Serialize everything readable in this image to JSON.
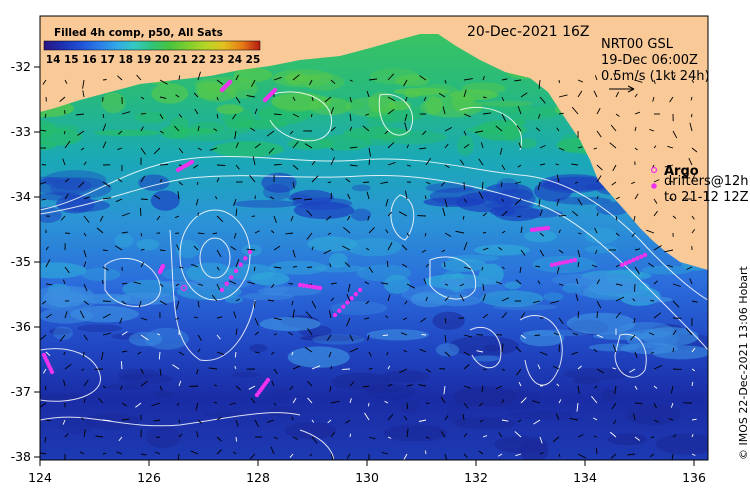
{
  "colorbar": {
    "title": "Filled 4h comp, p50, All Sats",
    "ticks": [
      "14",
      "15",
      "16",
      "17",
      "18",
      "19",
      "20",
      "21",
      "22",
      "23",
      "24",
      "25"
    ],
    "colors": [
      "#2a1480",
      "#1d2fb0",
      "#1f4fd6",
      "#2a7ae8",
      "#31a6e8",
      "#35c9c3",
      "#2fc47a",
      "#49c33e",
      "#7fcd2e",
      "#b5d624",
      "#e3c01f",
      "#e67b16",
      "#b61b12"
    ]
  },
  "map": {
    "date_label": "20-Dec-2021 16Z",
    "product": "NRT00 GSL",
    "analysis_time": "19-Dec 06:00Z",
    "vector_scale": "0.5m/s (1kt 24h)",
    "argo_label": "Argo",
    "drifters_line1": "drifters@12h",
    "drifters_line2": "to 21-12 12Z",
    "credit": "© IMOS 22-Dec-2021 13:06 Hobart",
    "x_ticks": [
      "124",
      "126",
      "128",
      "130",
      "132",
      "134",
      "136"
    ],
    "y_ticks": [
      "-32",
      "-33",
      "-34",
      "-35",
      "-36",
      "-37",
      "-38"
    ],
    "land_color": "#f9c998",
    "drifter_color": "#ee33ee"
  }
}
